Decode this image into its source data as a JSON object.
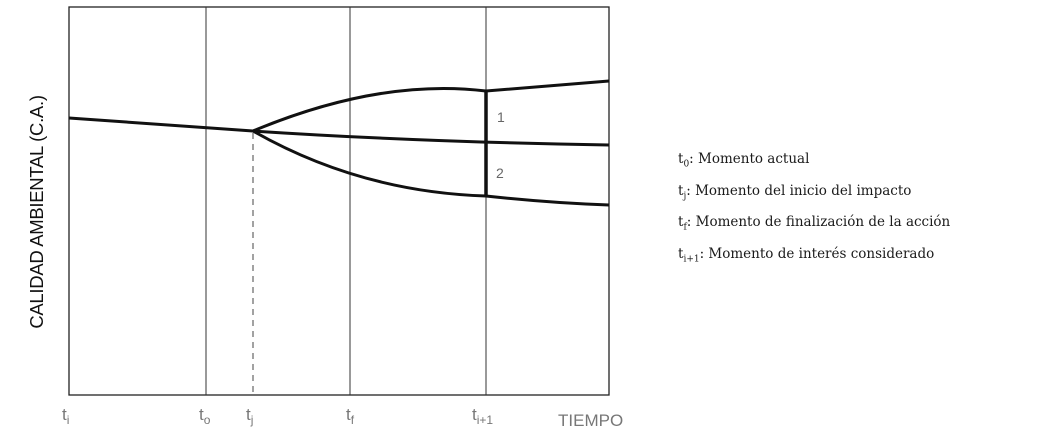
{
  "diagram": {
    "y_axis_label": "CALIDAD AMBIENTAL (C.A.)",
    "x_axis_label": "TIEMPO",
    "time_marks": [
      {
        "base": "t",
        "sub": "i"
      },
      {
        "base": "t",
        "sub": "o"
      },
      {
        "base": "t",
        "sub": "j"
      },
      {
        "base": "t",
        "sub": "f"
      },
      {
        "base": "t",
        "sub": "i+1"
      }
    ],
    "zone_labels": [
      "1",
      "2"
    ]
  },
  "legend": [
    {
      "sym": "t",
      "sub": "0",
      "text": ": Momento actual"
    },
    {
      "sym": "t",
      "sub": "j",
      "text": ": Momento del inicio del impacto"
    },
    {
      "sym": "t",
      "sub": "f",
      "text": ": Momento de finalización de la acción"
    },
    {
      "sym": "t",
      "sub": "i+1",
      "text": ": Momento de interés considerado"
    }
  ]
}
